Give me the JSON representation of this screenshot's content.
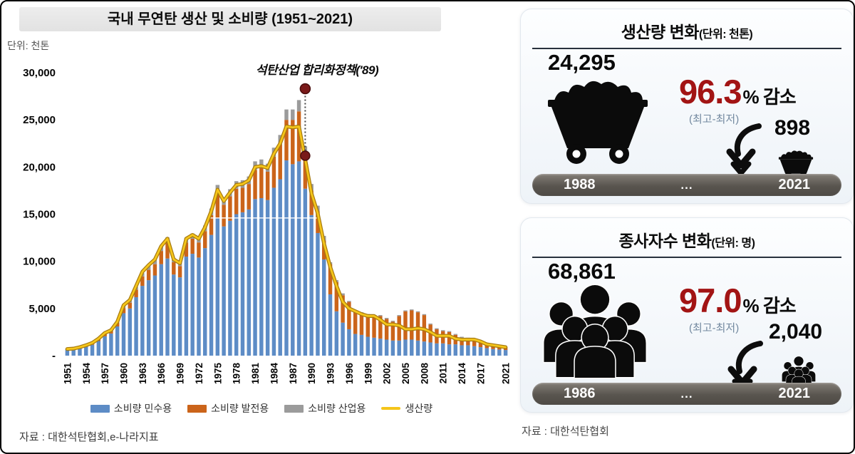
{
  "page": {
    "source_left": "자료 : 대한석탄협회,e-나라지표",
    "source_right": "자료 : 대한석탄협회"
  },
  "chart": {
    "title": "국내 무연탄 생산 및 소비량 (1951~2021)",
    "unit_label": "단위: 천톤",
    "annotation_text": "석탄산업 합리화정책('89)"
  },
  "chart_data": {
    "type": "bar",
    "subtype": "stacked-bar-with-line",
    "title": "국내 무연탄 생산 및 소비량 (1951~2021)",
    "ylabel": "단위: 천톤",
    "ylim": [
      0,
      30000
    ],
    "grid": false,
    "legend_position": "bottom",
    "yticks": [
      0,
      5000,
      10000,
      15000,
      20000,
      25000,
      30000
    ],
    "ytick_labels": [
      "-",
      "5,000",
      "10,000",
      "15,000",
      "20,000",
      "25,000",
      "30,000"
    ],
    "xtick_labels": [
      "1951",
      "1954",
      "1957",
      "1960",
      "1963",
      "1966",
      "1969",
      "1972",
      "1975",
      "1978",
      "1981",
      "1984",
      "1987",
      "1990",
      "1993",
      "1996",
      "1999",
      "2002",
      "2005",
      "2008",
      "2011",
      "2014",
      "2017",
      "2021"
    ],
    "categories": [
      1951,
      1952,
      1953,
      1954,
      1955,
      1956,
      1957,
      1958,
      1959,
      1960,
      1961,
      1962,
      1963,
      1964,
      1965,
      1966,
      1967,
      1968,
      1969,
      1970,
      1971,
      1972,
      1973,
      1974,
      1975,
      1976,
      1977,
      1978,
      1979,
      1980,
      1981,
      1982,
      1983,
      1984,
      1985,
      1986,
      1987,
      1988,
      1989,
      1990,
      1991,
      1992,
      1993,
      1994,
      1995,
      1996,
      1997,
      1998,
      1999,
      2000,
      2001,
      2002,
      2003,
      2004,
      2005,
      2006,
      2007,
      2008,
      2009,
      2010,
      2011,
      2012,
      2013,
      2014,
      2015,
      2016,
      2017,
      2018,
      2019,
      2020,
      2021
    ],
    "series": [
      {
        "name": "소비량 민수용",
        "type": "bar",
        "color": "#5d8cc6",
        "values": [
          600,
          650,
          800,
          950,
          1150,
          1550,
          2050,
          2350,
          3100,
          4500,
          5000,
          6200,
          7400,
          8000,
          8500,
          9700,
          10300,
          8600,
          8300,
          10500,
          10800,
          10400,
          11400,
          12800,
          14600,
          13700,
          14300,
          15000,
          15200,
          15500,
          16600,
          16700,
          16500,
          17800,
          18700,
          20700,
          20300,
          20600,
          17700,
          14900,
          13000,
          10200,
          6500,
          4700,
          3500,
          2800,
          2300,
          2200,
          2000,
          1900,
          1800,
          1700,
          1600,
          1600,
          1700,
          1700,
          1600,
          1500,
          1400,
          1300,
          1300,
          1200,
          1200,
          1100,
          1100,
          1000,
          900,
          800,
          700,
          650,
          600
        ]
      },
      {
        "name": "소비량 발전용",
        "type": "bar",
        "color": "#cb641a",
        "values": [
          60,
          60,
          70,
          90,
          110,
          160,
          250,
          270,
          380,
          550,
          620,
          800,
          1000,
          1100,
          1200,
          1400,
          1700,
          1300,
          1200,
          1500,
          1600,
          1600,
          1800,
          2100,
          2700,
          2300,
          2600,
          2700,
          2600,
          2700,
          3100,
          3200,
          3000,
          3300,
          3700,
          4300,
          4700,
          5300,
          3600,
          2600,
          2300,
          2000,
          3200,
          3100,
          2900,
          2900,
          2400,
          2300,
          2300,
          2200,
          2400,
          2200,
          2000,
          2600,
          3000,
          3100,
          3000,
          2800,
          1900,
          1500,
          1300,
          1300,
          1000,
          800,
          700,
          700,
          600,
          450,
          350,
          300,
          270
        ]
      },
      {
        "name": "소비량 산업용",
        "type": "bar",
        "color": "#9b9b9b",
        "values": [
          20,
          20,
          30,
          40,
          50,
          70,
          90,
          100,
          130,
          200,
          220,
          280,
          350,
          400,
          450,
          500,
          550,
          450,
          420,
          500,
          550,
          550,
          600,
          700,
          800,
          700,
          750,
          800,
          800,
          800,
          900,
          900,
          850,
          950,
          1000,
          1100,
          1100,
          1200,
          900,
          700,
          600,
          500,
          200,
          200,
          200,
          100,
          100,
          100,
          100,
          100,
          100,
          100,
          100,
          100,
          100,
          100,
          100,
          100,
          100,
          100,
          100,
          100,
          100,
          100,
          100,
          100,
          100,
          50,
          50,
          50,
          30
        ]
      },
      {
        "name": "생산량",
        "type": "line",
        "color": "#f5c51a",
        "values": [
          700,
          750,
          900,
          1100,
          1350,
          1800,
          2400,
          2700,
          3600,
          5350,
          5900,
          7400,
          8900,
          9600,
          10200,
          11600,
          12400,
          10200,
          9800,
          12400,
          12800,
          12400,
          13600,
          15300,
          17600,
          16400,
          17300,
          18100,
          18200,
          18600,
          20000,
          20100,
          19900,
          21400,
          22500,
          24300,
          24200,
          24295,
          20800,
          17200,
          15100,
          11900,
          9400,
          7400,
          5700,
          5000,
          4700,
          4400,
          4200,
          4200,
          3800,
          3300,
          3300,
          3200,
          2800,
          2800,
          2900,
          2800,
          2500,
          2100,
          2100,
          2100,
          1800,
          1700,
          1700,
          1700,
          1500,
          1200,
          1100,
          1000,
          898
        ]
      }
    ],
    "annotation": {
      "text": "석탄산업 합리화정책('89)",
      "year": 1989,
      "dot_high": 28300,
      "dot_low": 21200,
      "dot_color": "#7a1a1a"
    },
    "highlight_gridline": {
      "value": 14600,
      "color": "#ffffff"
    }
  },
  "panels": [
    {
      "title": "생산량 변화",
      "unit": "(단위: 천톤)",
      "start_value": "24,295",
      "start_year": "1988",
      "end_value": "898",
      "end_year": "2021",
      "change_value": "96.3",
      "change_suffix": "% 감소",
      "change_note": "(최고-최저)",
      "dots": "...",
      "icon": "coal-cart-icon",
      "accent_color": "#a21414"
    },
    {
      "title": "종사자수 변화",
      "unit": "(단위: 명)",
      "start_value": "68,861",
      "start_year": "1986",
      "end_value": "2,040",
      "end_year": "2021",
      "change_value": "97.0",
      "change_suffix": "% 감소",
      "change_note": "(최고-최저)",
      "dots": "...",
      "icon": "people-group-icon",
      "accent_color": "#a21414"
    }
  ]
}
